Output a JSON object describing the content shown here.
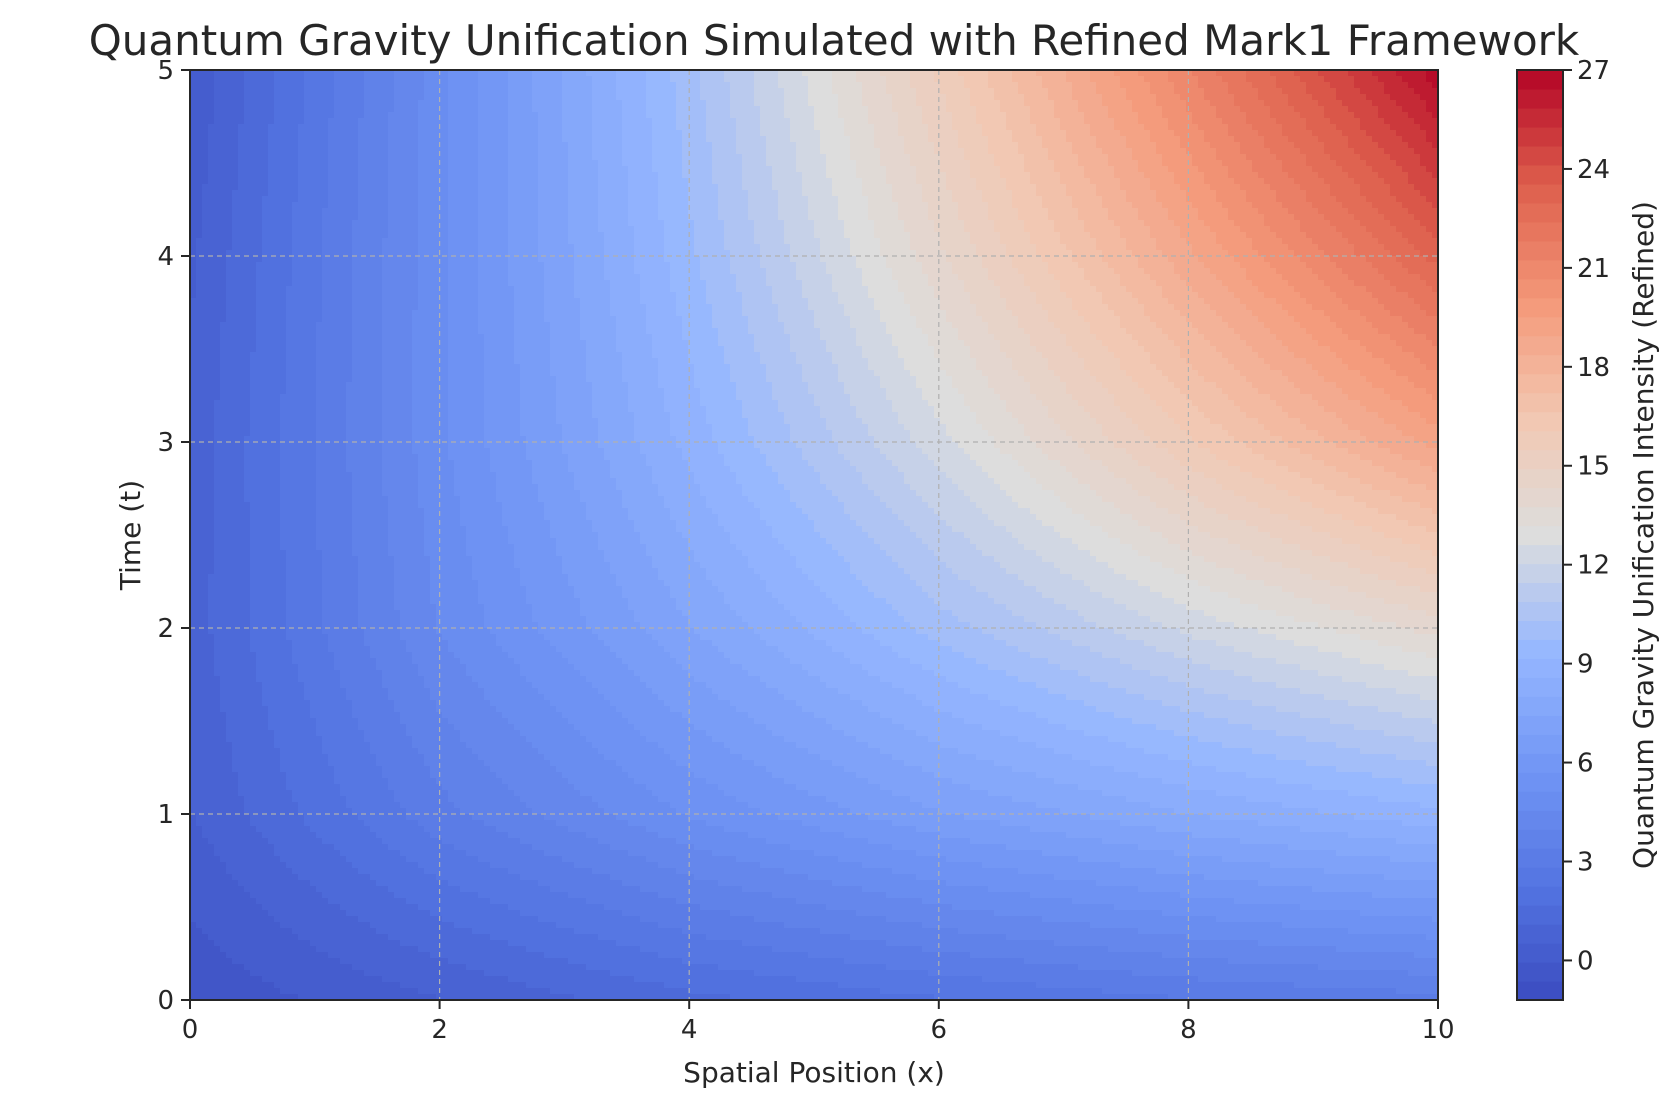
{
  "chart_data": {
    "type": "heatmap",
    "style": "filled-contour",
    "title": "Quantum Gravity Unification Simulated with Refined Mark1 Framework",
    "xlabel": "Spatial Position (x)",
    "ylabel": "Time (t)",
    "xlim": [
      0,
      10
    ],
    "ylim": [
      0,
      5
    ],
    "x_ticks": [
      "0",
      "2",
      "4",
      "6",
      "8",
      "10"
    ],
    "y_ticks": [
      "0",
      "1",
      "2",
      "3",
      "4",
      "5"
    ],
    "grid": true,
    "colormap": "coolwarm",
    "colorbar": {
      "label": "Quantum Gravity Unification Intensity (Refined)",
      "ticks": [
        "0",
        "3",
        "6",
        "9",
        "12",
        "15",
        "18",
        "21",
        "24",
        "27"
      ],
      "range": [
        -1.2,
        27
      ],
      "levels": 49
    },
    "approximate_values": {
      "x": [
        0,
        2,
        4,
        6,
        8,
        10
      ],
      "t": [
        0,
        1,
        2,
        3,
        4,
        5
      ],
      "z": [
        [
          -0.5,
          0.5,
          1.5,
          2.2,
          2.8,
          3.2
        ],
        [
          0.5,
          3.2,
          5.2,
          6.8,
          8.0,
          9.0
        ],
        [
          0.8,
          4.6,
          7.4,
          10.0,
          12.2,
          14.0
        ],
        [
          0.7,
          5.0,
          8.8,
          12.4,
          16.0,
          19.2
        ],
        [
          0.4,
          5.0,
          9.6,
          14.2,
          18.8,
          23.2
        ],
        [
          0.0,
          4.9,
          10.1,
          15.6,
          21.2,
          26.8
        ]
      ]
    }
  }
}
